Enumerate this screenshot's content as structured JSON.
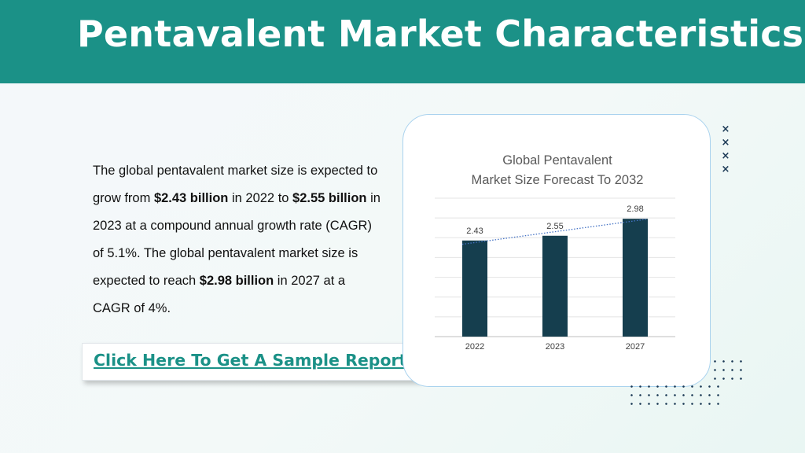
{
  "header": {
    "title": "Pentavalent Market Characteristics:"
  },
  "body": {
    "segments": [
      {
        "text": "The global pentavalent market size is expected to grow from ",
        "bold": false
      },
      {
        "text": "$2.43 billion",
        "bold": true
      },
      {
        "text": " in 2022 to ",
        "bold": false
      },
      {
        "text": "$2.55 billion",
        "bold": true
      },
      {
        "text": " in 2023 at a compound annual growth rate (CAGR) of 5.1%. The global pentavalent market size is expected to reach ",
        "bold": false
      },
      {
        "text": "$2.98 billion",
        "bold": true
      },
      {
        "text": " in 2027 at a CAGR of 4%.",
        "bold": false
      }
    ]
  },
  "cta": {
    "label": "Click Here To Get A Sample Report"
  },
  "decorations": {
    "xmark_glyph": "×",
    "accent_color": "#1b9187",
    "dark_navy": "#1c3a56"
  },
  "chart_data": {
    "type": "bar",
    "title_lines": [
      "Global Pentavalent",
      "Market Size Forecast To 2032"
    ],
    "categories": [
      "2022",
      "2023",
      "2027"
    ],
    "values": [
      2.43,
      2.55,
      2.98
    ],
    "value_labels": [
      "2.43",
      "2.55",
      "2.98"
    ],
    "ylim": [
      0,
      3.5
    ],
    "grid": true,
    "trendline": "linear dotted",
    "bar_color": "#153e4e",
    "trend_color": "#4472c4"
  }
}
